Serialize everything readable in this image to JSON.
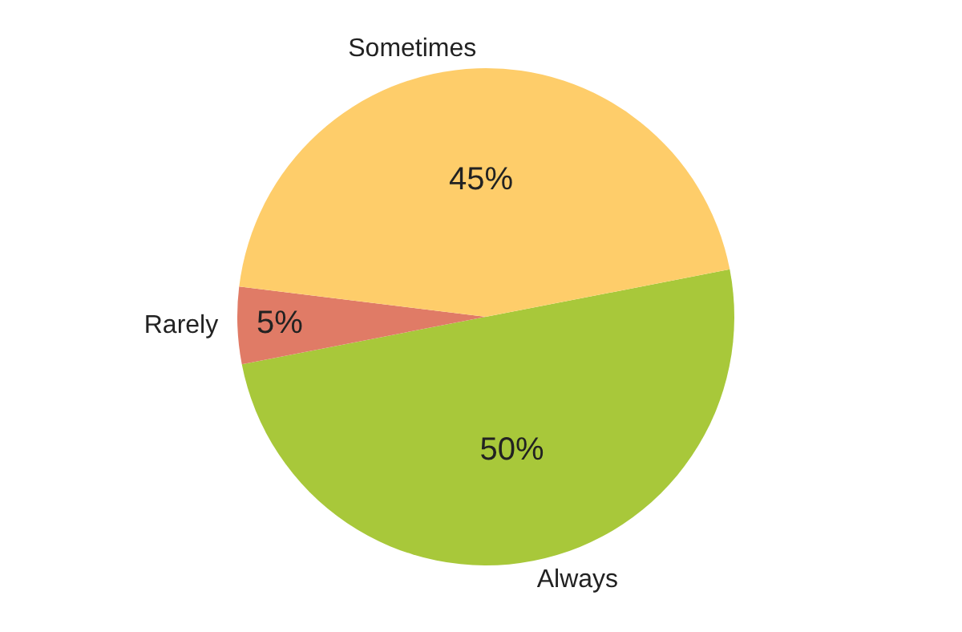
{
  "chart_data": {
    "type": "pie",
    "categories": [
      "Always",
      "Rarely",
      "Sometimes"
    ],
    "values": [
      50,
      5,
      45
    ],
    "colors": [
      "#a8c83a",
      "#e07b66",
      "#fecd6a"
    ],
    "value_labels": [
      "50%",
      "5%",
      "45%"
    ],
    "legend": false
  }
}
